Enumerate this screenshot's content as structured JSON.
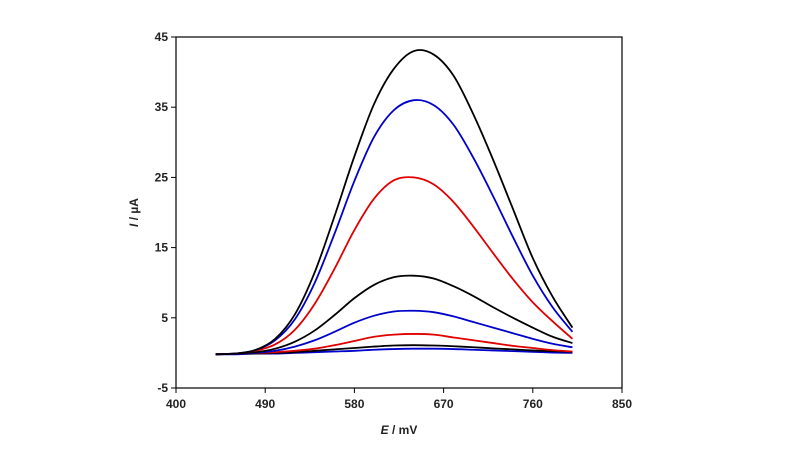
{
  "chart_data": {
    "type": "line",
    "title": "",
    "xlabel": {
      "symbol": "E",
      "unit": " / mV"
    },
    "ylabel": {
      "symbol": "I",
      "unit": " / µA"
    },
    "xlim": [
      400,
      850
    ],
    "ylim": [
      -5,
      45
    ],
    "xticks": [
      400,
      490,
      580,
      670,
      760,
      850
    ],
    "yticks": [
      -5,
      5,
      15,
      25,
      35,
      45
    ],
    "grid": false,
    "legend": "none",
    "x": [
      440,
      460,
      480,
      500,
      520,
      540,
      560,
      580,
      600,
      620,
      640,
      660,
      680,
      700,
      720,
      740,
      760,
      780,
      800
    ],
    "series": [
      {
        "color": "#0000cc",
        "values": [
          -0.2,
          -0.2,
          -0.1,
          -0.1,
          0.0,
          0.1,
          0.2,
          0.3,
          0.45,
          0.55,
          0.6,
          0.6,
          0.55,
          0.45,
          0.35,
          0.25,
          0.15,
          0.05,
          0.0
        ]
      },
      {
        "color": "#000000",
        "values": [
          -0.2,
          -0.1,
          -0.1,
          0.0,
          0.1,
          0.3,
          0.5,
          0.7,
          0.9,
          1.05,
          1.1,
          1.05,
          0.95,
          0.8,
          0.65,
          0.5,
          0.35,
          0.25,
          0.15
        ]
      },
      {
        "color": "#e00000",
        "values": [
          -0.2,
          -0.1,
          0.0,
          0.1,
          0.3,
          0.6,
          1.1,
          1.7,
          2.3,
          2.6,
          2.7,
          2.6,
          2.2,
          1.8,
          1.4,
          1.0,
          0.7,
          0.4,
          0.2
        ]
      },
      {
        "color": "#0000cc",
        "values": [
          -0.2,
          -0.1,
          0.0,
          0.3,
          0.9,
          1.8,
          3.0,
          4.3,
          5.3,
          5.9,
          6.0,
          5.8,
          5.2,
          4.4,
          3.6,
          2.8,
          2.0,
          1.3,
          0.8
        ]
      },
      {
        "color": "#000000",
        "values": [
          -0.2,
          -0.1,
          0.1,
          0.6,
          1.6,
          3.2,
          5.4,
          7.8,
          9.7,
          10.8,
          11.0,
          10.6,
          9.5,
          8.1,
          6.5,
          5.0,
          3.6,
          2.3,
          1.4
        ]
      },
      {
        "color": "#e00000",
        "values": [
          -0.2,
          -0.1,
          0.3,
          1.2,
          3.3,
          7.0,
          12.0,
          17.5,
          22.0,
          24.6,
          25.0,
          24.0,
          21.5,
          18.0,
          14.2,
          10.5,
          7.2,
          4.5,
          2.0
        ]
      },
      {
        "color": "#0000cc",
        "values": [
          -0.2,
          -0.1,
          0.4,
          1.8,
          4.8,
          10.0,
          17.0,
          24.5,
          30.8,
          34.6,
          36.0,
          35.3,
          32.5,
          27.8,
          22.3,
          16.5,
          11.0,
          6.5,
          3.0
        ]
      },
      {
        "color": "#000000",
        "values": [
          -0.2,
          -0.1,
          0.4,
          2.0,
          5.5,
          11.5,
          19.5,
          28.0,
          35.5,
          40.5,
          43.0,
          42.5,
          39.5,
          34.0,
          27.5,
          20.5,
          13.5,
          8.0,
          3.6
        ]
      }
    ]
  }
}
